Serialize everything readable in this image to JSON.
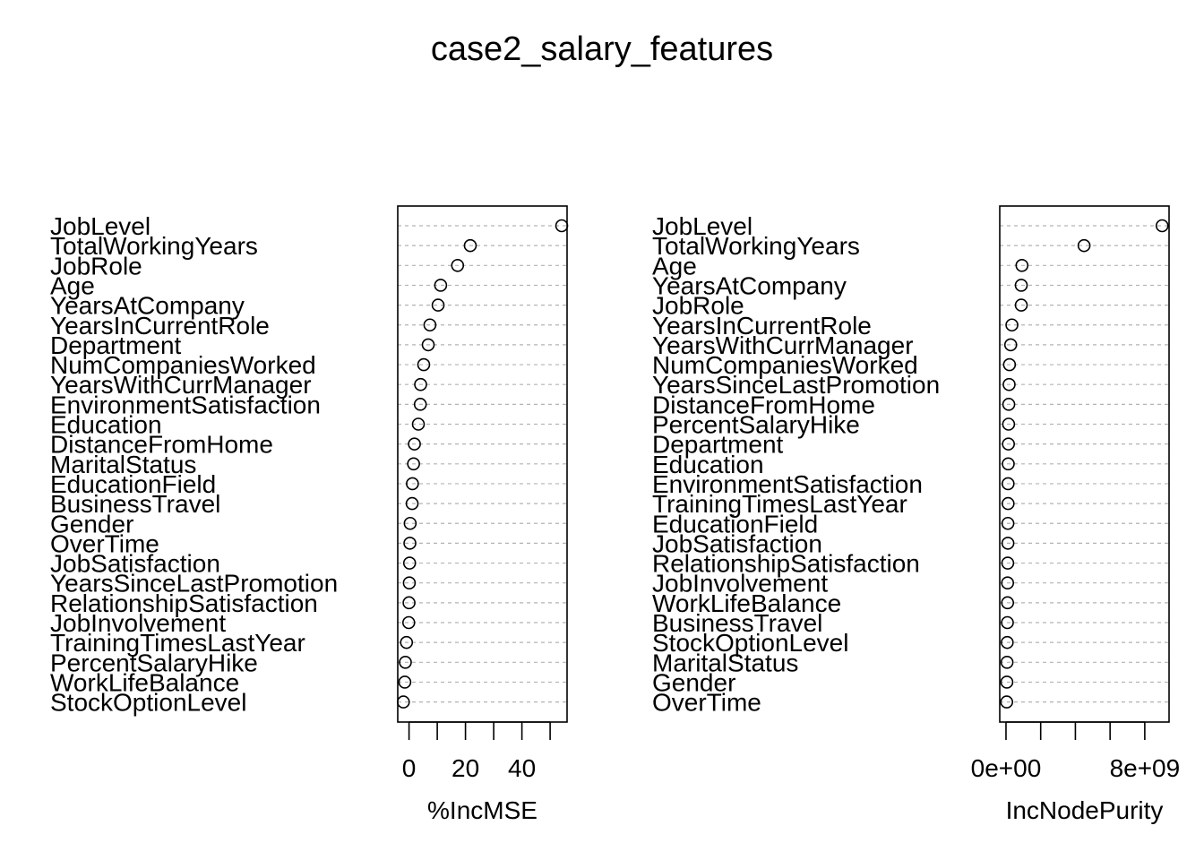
{
  "title": "case2_salary_features",
  "chart_data": [
    {
      "type": "scatter",
      "subtype": "dotchart",
      "xlabel": "%IncMSE",
      "ylabel": "",
      "xlim": [
        -4,
        56
      ],
      "xticks": [
        0,
        10,
        20,
        30,
        40,
        50
      ],
      "xtick_labels": [
        "0",
        "",
        "20",
        "",
        "40",
        ""
      ],
      "grid": "dashed horizontal",
      "labels": [
        "JobLevel",
        "TotalWorkingYears",
        "JobRole",
        "Age",
        "YearsAtCompany",
        "YearsInCurrentRole",
        "Department",
        "NumCompaniesWorked",
        "YearsWithCurrManager",
        "EnvironmentSatisfaction",
        "Education",
        "DistanceFromHome",
        "MaritalStatus",
        "EducationField",
        "BusinessTravel",
        "Gender",
        "OverTime",
        "JobSatisfaction",
        "YearsSinceLastPromotion",
        "RelationshipSatisfaction",
        "JobInvolvement",
        "TrainingTimesLastYear",
        "PercentSalaryHike",
        "WorkLifeBalance",
        "StockOptionLevel"
      ],
      "values": [
        54.1,
        21.7,
        17.2,
        11.2,
        10.3,
        7.4,
        6.8,
        5.2,
        4.1,
        4.0,
        3.3,
        1.9,
        1.6,
        1.2,
        1.1,
        0.4,
        0.3,
        0.2,
        0.1,
        0.0,
        -0.1,
        -0.9,
        -1.3,
        -1.5,
        -2.0
      ]
    },
    {
      "type": "scatter",
      "subtype": "dotchart",
      "xlabel": "IncNodePurity",
      "ylabel": "",
      "xlim": [
        -360000000.0,
        9400000000.0
      ],
      "xticks": [
        0,
        2000000000.0,
        4000000000.0,
        6000000000.0,
        8000000000.0
      ],
      "xtick_labels": [
        "0e+00",
        "",
        "",
        "",
        "8e+09"
      ],
      "grid": "dashed horizontal",
      "labels": [
        "JobLevel",
        "TotalWorkingYears",
        "Age",
        "YearsAtCompany",
        "JobRole",
        "YearsInCurrentRole",
        "YearsWithCurrManager",
        "NumCompaniesWorked",
        "YearsSinceLastPromotion",
        "DistanceFromHome",
        "PercentSalaryHike",
        "Department",
        "Education",
        "EnvironmentSatisfaction",
        "TrainingTimesLastYear",
        "EducationField",
        "JobSatisfaction",
        "RelationshipSatisfaction",
        "JobInvolvement",
        "WorkLifeBalance",
        "BusinessTravel",
        "StockOptionLevel",
        "MaritalStatus",
        "Gender",
        "OverTime"
      ],
      "values": [
        9000000000.0,
        4500000000.0,
        920000000.0,
        880000000.0,
        880000000.0,
        340000000.0,
        270000000.0,
        200000000.0,
        180000000.0,
        160000000.0,
        150000000.0,
        140000000.0,
        130000000.0,
        120000000.0,
        120000000.0,
        110000000.0,
        110000000.0,
        100000000.0,
        90000000.0,
        90000000.0,
        80000000.0,
        70000000.0,
        60000000.0,
        50000000.0,
        40000000.0
      ]
    }
  ]
}
